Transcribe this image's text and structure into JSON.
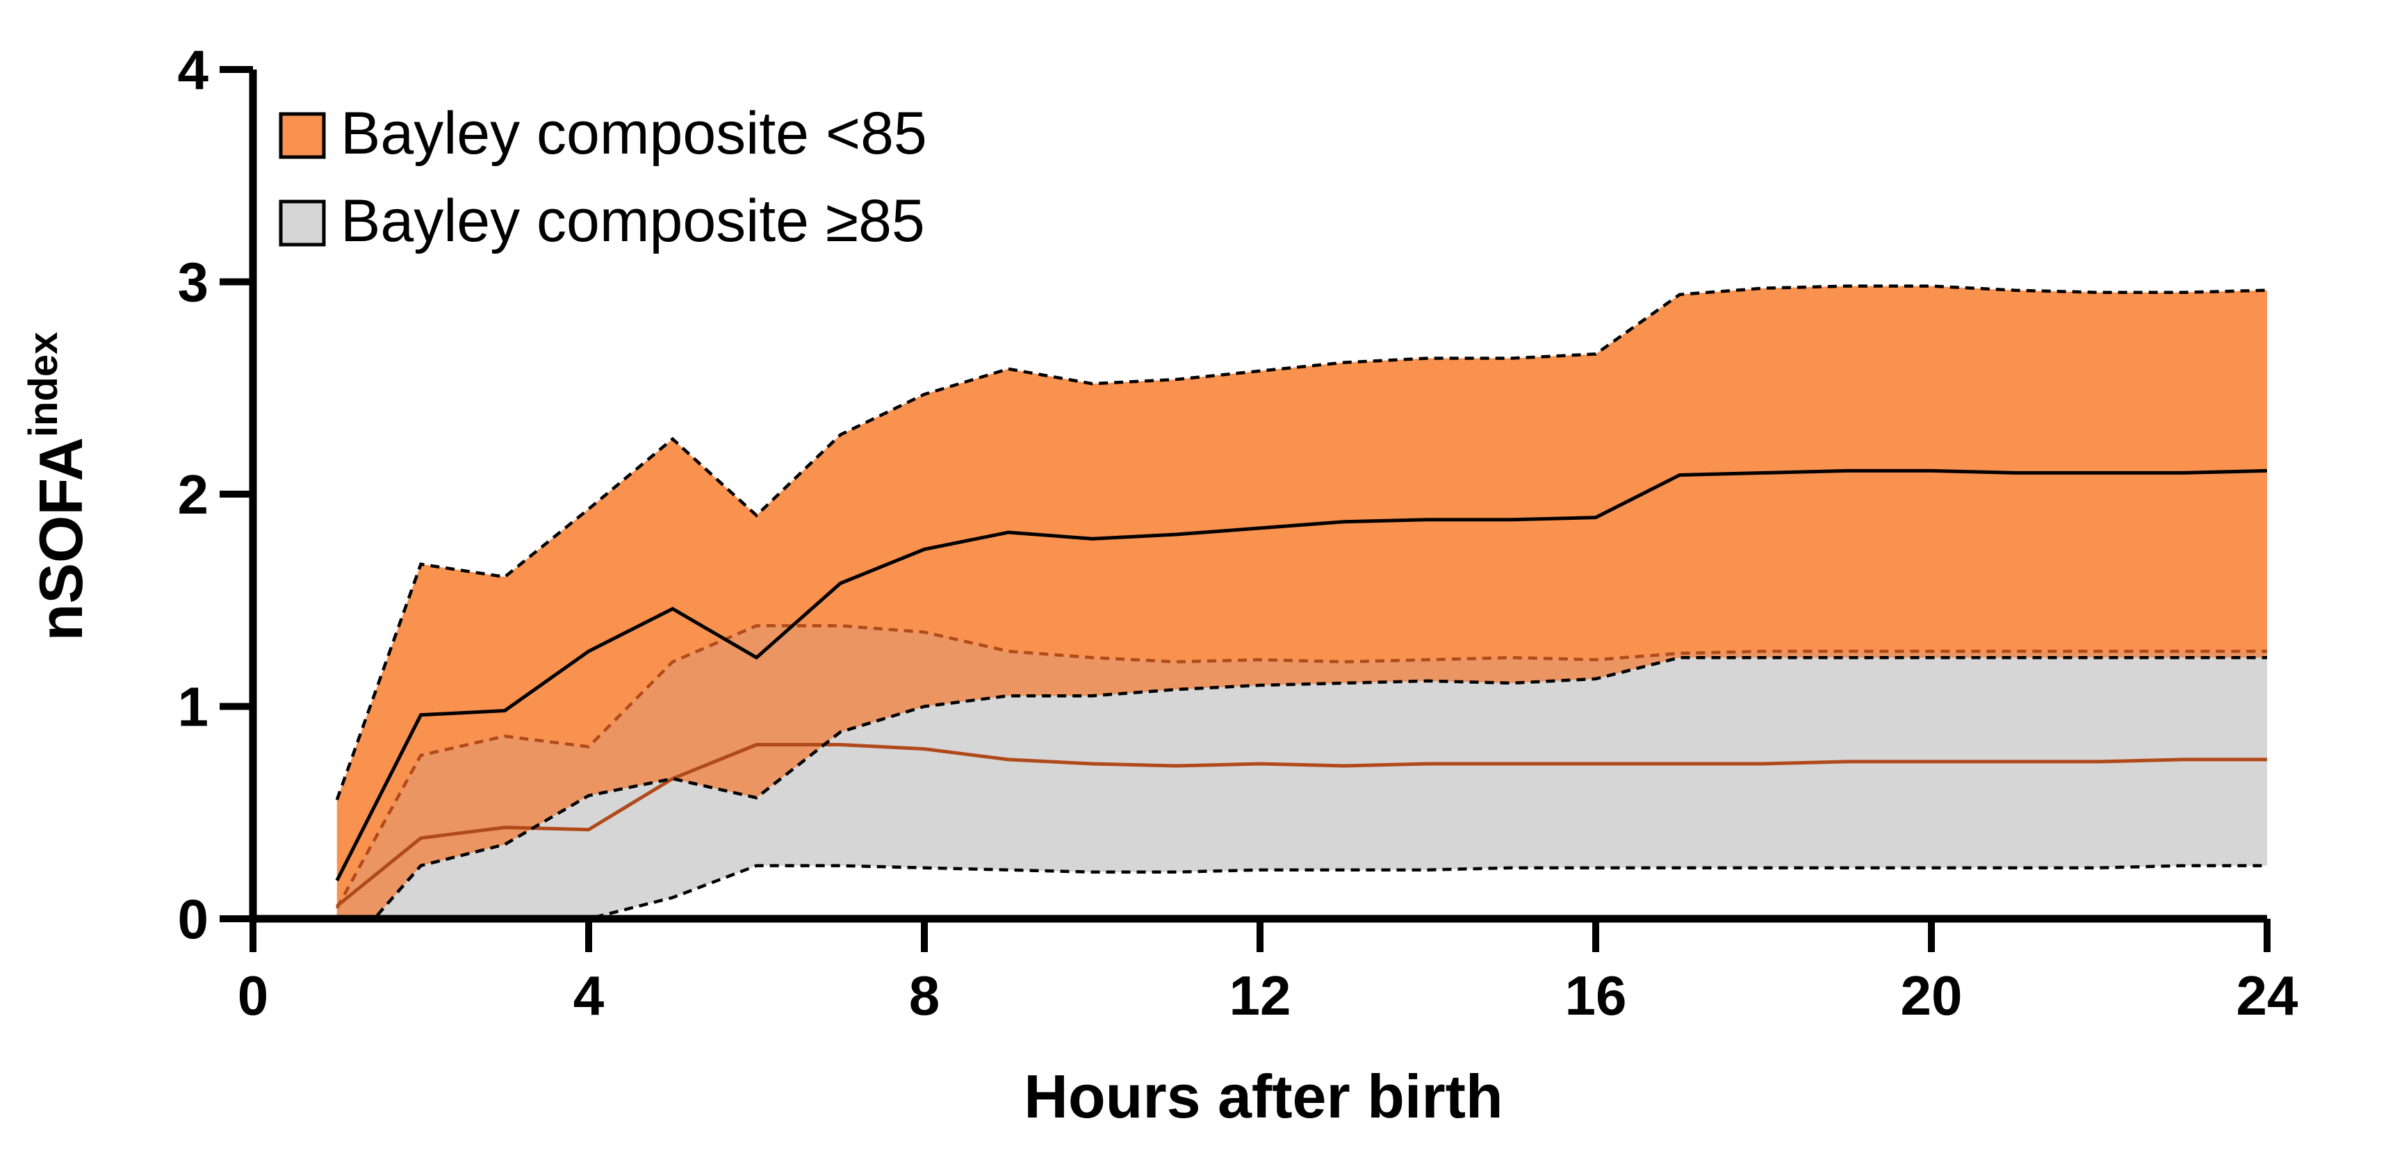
{
  "chart_data": {
    "type": "area",
    "xlabel": "Hours after birth",
    "ylabel": {
      "main": "nSOFA",
      "superscript": "index"
    },
    "xlim": [
      0,
      24
    ],
    "ylim": [
      0,
      4
    ],
    "xticks": [
      "0",
      "4",
      "8",
      "12",
      "16",
      "20",
      "24"
    ],
    "yticks": [
      "0",
      "1",
      "2",
      "3",
      "4"
    ],
    "legend_position": "top-left",
    "legend": [
      {
        "label": "Bayley composite <85",
        "color": "#F9924F"
      },
      {
        "label": "Bayley composite ≥85",
        "color": "#D6D6D6"
      }
    ],
    "x": [
      1,
      2,
      3,
      4,
      5,
      6,
      7,
      8,
      9,
      10,
      11,
      12,
      13,
      14,
      15,
      16,
      17,
      18,
      19,
      20,
      21,
      22,
      23,
      24
    ],
    "series": [
      {
        "name": "Bayley composite <85",
        "fill": "#F9924F",
        "mean_line": "#000000",
        "bound_line": "#000000",
        "mean": [
          0.18,
          0.96,
          0.98,
          1.26,
          1.46,
          1.23,
          1.58,
          1.74,
          1.82,
          1.79,
          1.81,
          1.84,
          1.87,
          1.88,
          1.88,
          1.89,
          2.09,
          2.1,
          2.11,
          2.11,
          2.1,
          2.1,
          2.1,
          2.11
        ],
        "upper": [
          0.56,
          1.67,
          1.61,
          1.93,
          2.26,
          1.9,
          2.28,
          2.47,
          2.59,
          2.52,
          2.54,
          2.58,
          2.62,
          2.64,
          2.64,
          2.66,
          2.94,
          2.97,
          2.98,
          2.98,
          2.96,
          2.95,
          2.95,
          2.96
        ],
        "lower": [
          -0.2,
          0.25,
          0.35,
          0.58,
          0.66,
          0.57,
          0.88,
          1.0,
          1.05,
          1.05,
          1.08,
          1.1,
          1.11,
          1.12,
          1.11,
          1.13,
          1.23,
          1.23,
          1.23,
          1.23,
          1.23,
          1.23,
          1.23,
          1.23
        ]
      },
      {
        "name": "Bayley composite ≥85",
        "fill": "#D6D6D6",
        "mean_line": "#000000",
        "bound_line": "#000000",
        "overlap_line": "#B14A1A",
        "mean": [
          0.06,
          0.38,
          0.43,
          0.42,
          0.66,
          0.82,
          0.82,
          0.8,
          0.75,
          0.73,
          0.72,
          0.73,
          0.72,
          0.73,
          0.73,
          0.73,
          0.73,
          0.73,
          0.74,
          0.74,
          0.74,
          0.74,
          0.75,
          0.75
        ],
        "upper": [
          0.05,
          0.77,
          0.86,
          0.81,
          1.21,
          1.38,
          1.38,
          1.35,
          1.26,
          1.23,
          1.21,
          1.22,
          1.21,
          1.22,
          1.23,
          1.22,
          1.25,
          1.26,
          1.26,
          1.26,
          1.26,
          1.26,
          1.26,
          1.26
        ],
        "lower": [
          -0.4,
          -0.02,
          -0.02,
          0.0,
          0.1,
          0.25,
          0.25,
          0.24,
          0.23,
          0.22,
          0.22,
          0.23,
          0.23,
          0.23,
          0.24,
          0.24,
          0.24,
          0.24,
          0.24,
          0.24,
          0.24,
          0.24,
          0.25,
          0.25
        ]
      }
    ]
  }
}
